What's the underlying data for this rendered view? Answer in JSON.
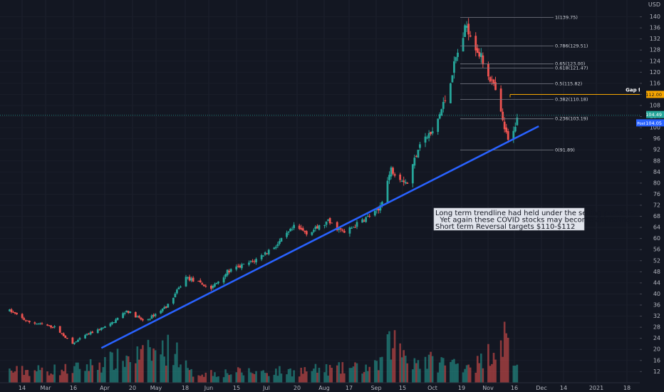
{
  "chart_data": {
    "type": "candlestick",
    "currency_label": "USD",
    "y_ticks": [
      12,
      16,
      20,
      24,
      28,
      32,
      36,
      40,
      44,
      48,
      52,
      56,
      60,
      64,
      68,
      72,
      76,
      80,
      84,
      88,
      92,
      96,
      100,
      104,
      108,
      112,
      116,
      120,
      124,
      128,
      132,
      136,
      140
    ],
    "y_range": [
      9,
      144
    ],
    "x_labels": [
      "14",
      "Mar",
      "16",
      "Apr",
      "20",
      "May",
      "18",
      "Jun",
      "15",
      "Jul",
      "20",
      "Aug",
      "17",
      "Sep",
      "15",
      "Oct",
      "19",
      "Nov",
      "16",
      "Dec",
      "14",
      "2021",
      "18"
    ],
    "bull_color": "#26a69a",
    "bear_color": "#ef5350",
    "trend_line": {
      "start": [
        "2020-04-01",
        20.5
      ],
      "end": [
        "2020-11-30",
        100.5
      ],
      "color": "#2962ff"
    },
    "fib_levels": [
      {
        "label": "1(139.75)",
        "value": 139.75
      },
      {
        "label": "0.786(129.51)",
        "value": 129.51
      },
      {
        "label": "0.65(123.00)",
        "value": 123.0
      },
      {
        "label": "0.618(121.47)",
        "value": 121.47
      },
      {
        "label": "0.5(115.82)",
        "value": 115.82
      },
      {
        "label": "0.382(110.18)",
        "value": 110.18
      },
      {
        "label": "0.236(103.19)",
        "value": 103.19
      },
      {
        "label": "0(91.89)",
        "value": 91.89
      }
    ],
    "gap_fill": {
      "label": "Gap fill",
      "value": 112.0,
      "value_label": "112.00"
    },
    "price_labels": [
      {
        "text": "104.49",
        "value": 104.49,
        "color": "#26a69a"
      },
      {
        "text": "104.05",
        "value": 104.05,
        "color": "#2962ff",
        "tag": "Post"
      }
    ],
    "annotation": {
      "lines": [
        "Long term trendline had held under the selling pressure.",
        "  Yet again these COVID stocks may become appealing.",
        "Short term Reversal targets $110-$112"
      ]
    },
    "price_anchors": [
      [
        "2020-02-10",
        34
      ],
      [
        "2020-02-20",
        30
      ],
      [
        "2020-03-06",
        28
      ],
      [
        "2020-03-16",
        22
      ],
      [
        "2020-03-23",
        25
      ],
      [
        "2020-04-06",
        29
      ],
      [
        "2020-04-15",
        34
      ],
      [
        "2020-04-25",
        30
      ],
      [
        "2020-05-08",
        36
      ],
      [
        "2020-05-18",
        46
      ],
      [
        "2020-06-01",
        42
      ],
      [
        "2020-06-10",
        48
      ],
      [
        "2020-06-25",
        52
      ],
      [
        "2020-07-08",
        58
      ],
      [
        "2020-07-17",
        64
      ],
      [
        "2020-07-25",
        62
      ],
      [
        "2020-08-05",
        66
      ],
      [
        "2020-08-14",
        62
      ],
      [
        "2020-08-25",
        67
      ],
      [
        "2020-09-02",
        70
      ],
      [
        "2020-09-09",
        85
      ],
      [
        "2020-09-18",
        80
      ],
      [
        "2020-09-25",
        95
      ],
      [
        "2020-10-02",
        98
      ],
      [
        "2020-10-09",
        110
      ],
      [
        "2020-10-15",
        125
      ],
      [
        "2020-10-21",
        137
      ],
      [
        "2020-10-27",
        128
      ],
      [
        "2020-11-03",
        118
      ],
      [
        "2020-11-06",
        113
      ],
      [
        "2020-11-10",
        102
      ],
      [
        "2020-11-13",
        95
      ],
      [
        "2020-11-18",
        103
      ]
    ],
    "volume_anchors": [
      [
        "2020-02-10",
        6
      ],
      [
        "2020-03-16",
        7
      ],
      [
        "2020-05-12",
        18
      ],
      [
        "2020-05-20",
        5
      ],
      [
        "2020-07-15",
        6
      ],
      [
        "2020-09-01",
        8
      ],
      [
        "2020-09-10",
        22
      ],
      [
        "2020-09-20",
        12
      ],
      [
        "2020-10-12",
        10
      ],
      [
        "2020-10-28",
        10
      ],
      [
        "2020-11-11",
        24
      ],
      [
        "2020-11-18",
        8
      ]
    ]
  }
}
